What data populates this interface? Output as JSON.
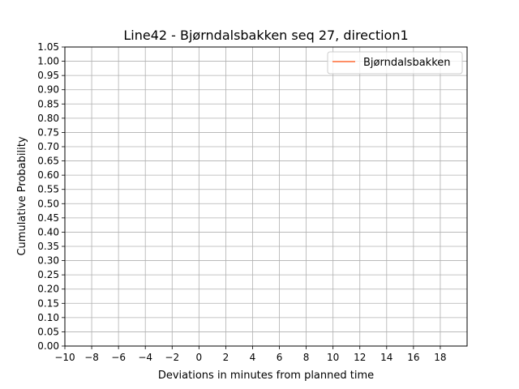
{
  "chart_data": {
    "type": "line",
    "title": "Line42 - Bjørndalsbakken seq 27, direction1",
    "xlabel": "Deviations in minutes from planned time",
    "ylabel": "Cumulative Probability",
    "xlim": [
      -10,
      20
    ],
    "ylim": [
      0,
      1.05
    ],
    "xticks": [
      -10,
      -8,
      -6,
      -4,
      -2,
      0,
      2,
      4,
      6,
      8,
      10,
      12,
      14,
      16,
      18
    ],
    "xtick_labels": [
      "−10",
      "−8",
      "−6",
      "−4",
      "−2",
      "0",
      "2",
      "4",
      "6",
      "8",
      "10",
      "12",
      "14",
      "16",
      "18"
    ],
    "yticks": [
      0,
      0.05,
      0.1,
      0.15,
      0.2,
      0.25,
      0.3,
      0.35,
      0.4,
      0.45,
      0.5,
      0.55,
      0.6,
      0.65,
      0.7,
      0.75,
      0.8,
      0.85,
      0.9,
      0.95,
      1.0,
      1.05
    ],
    "ytick_labels": [
      "0.00",
      "0.05",
      "0.10",
      "0.15",
      "0.20",
      "0.25",
      "0.30",
      "0.35",
      "0.40",
      "0.45",
      "0.50",
      "0.55",
      "0.60",
      "0.65",
      "0.70",
      "0.75",
      "0.80",
      "0.85",
      "0.90",
      "0.95",
      "1.00",
      "1.05"
    ],
    "grid": true,
    "legend_position": "top-right",
    "series": [
      {
        "name": "Bjørndalsbakken",
        "color": "#ff7f50",
        "x": [],
        "y": []
      }
    ]
  }
}
